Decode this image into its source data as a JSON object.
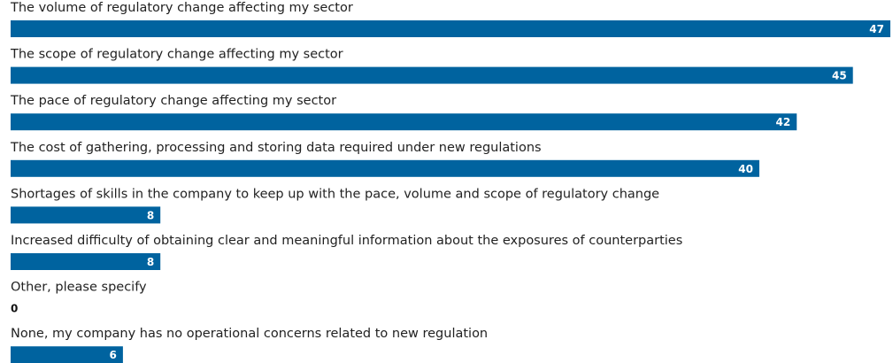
{
  "chart_data": {
    "type": "bar",
    "orientation": "horizontal",
    "categories": [
      "The volume of regulatory change affecting my sector",
      "The scope of regulatory change affecting my sector",
      "The pace of regulatory change affecting my sector",
      "The cost of gathering, processing and storing data required under new regulations",
      "Shortages of skills in the company to keep up with the pace, volume and scope of regulatory change",
      "Increased difficulty of obtaining clear and meaningful information about the exposures of counterparties",
      "Other, please specify",
      "None, my company has no operational concerns related to new regulation"
    ],
    "values": [
      47,
      45,
      42,
      40,
      8,
      8,
      0,
      6
    ],
    "color": "#00639f"
  }
}
